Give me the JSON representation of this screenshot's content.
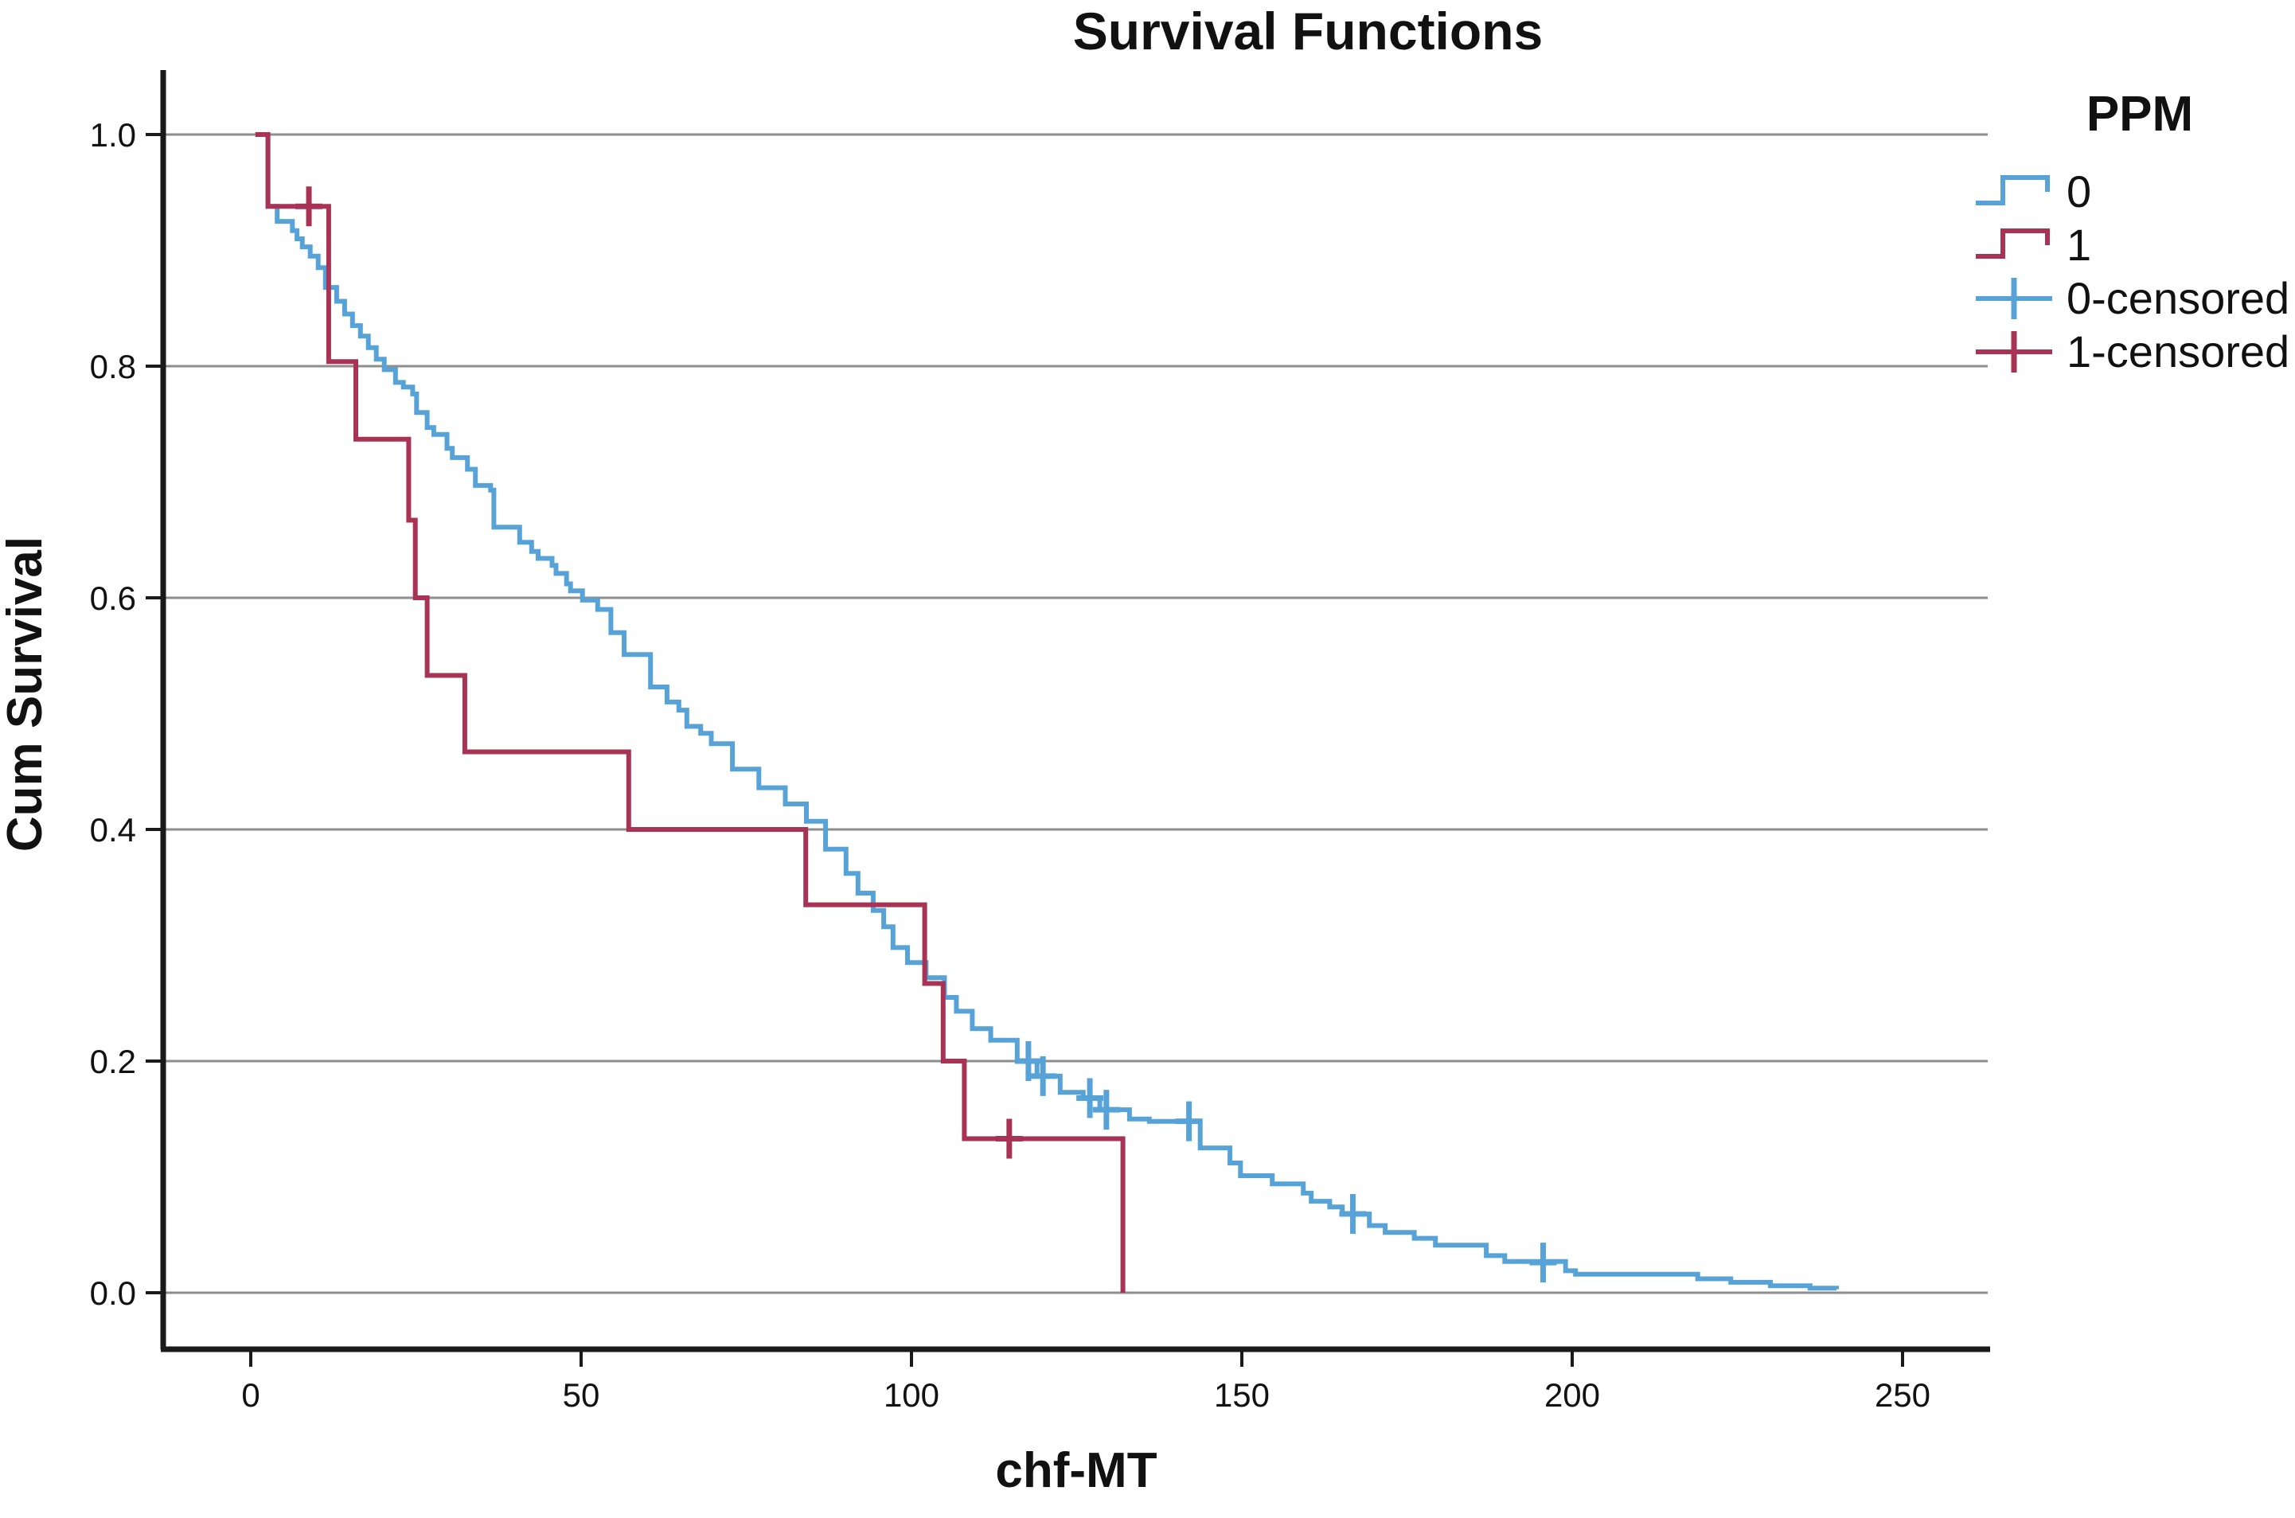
{
  "figure": {
    "title": "Survival Functions",
    "x_axis_label": "chf-MT",
    "y_axis_label": "Cum Survival"
  },
  "legend": {
    "title": "PPM",
    "items": [
      {
        "label": "0",
        "type": "step-line",
        "color": "#57a3d8"
      },
      {
        "label": "1",
        "type": "step-line",
        "color": "#a83355"
      },
      {
        "label": "0-censored",
        "type": "censor-plus",
        "color": "#57a3d8"
      },
      {
        "label": "1-censored",
        "type": "censor-plus",
        "color": "#a83355"
      }
    ]
  },
  "colors": {
    "group0": "#57a3d8",
    "group1": "#a83355",
    "gridline": "#8e8e8e",
    "axis": "#1a1a1a",
    "background": "#ffffff"
  },
  "chart_data": {
    "type": "line",
    "chart_style": "kaplan-meier-step",
    "title": "Survival Functions",
    "xlabel": "chf-MT",
    "ylabel": "Cum Survival",
    "xlim": [
      -13,
      263
    ],
    "ylim": [
      -0.05,
      1.06
    ],
    "x_ticks": [
      0,
      50,
      100,
      150,
      200,
      250
    ],
    "x_tick_labels": [
      "0",
      "50",
      "100",
      "150",
      "200",
      "250"
    ],
    "y_ticks": [
      0.0,
      0.2,
      0.4,
      0.6,
      0.8,
      1.0
    ],
    "y_tick_labels": [
      "0.0",
      "0.2",
      "0.4",
      "0.6",
      "0.8",
      "1.0"
    ],
    "grid": "horizontal",
    "legend_position": "right",
    "series": [
      {
        "name": "0",
        "color": "#57a3d8",
        "steps": [
          [
            0.7,
            1.0
          ],
          [
            2.6,
            0.938
          ],
          [
            4.0,
            0.925
          ],
          [
            6.3,
            0.917
          ],
          [
            7.0,
            0.91
          ],
          [
            7.8,
            0.903
          ],
          [
            9.0,
            0.895
          ],
          [
            10.2,
            0.885
          ],
          [
            11.3,
            0.868
          ],
          [
            13.0,
            0.856
          ],
          [
            14.2,
            0.845
          ],
          [
            15.4,
            0.835
          ],
          [
            16.6,
            0.826
          ],
          [
            17.8,
            0.816
          ],
          [
            19.0,
            0.806
          ],
          [
            20.2,
            0.797
          ],
          [
            21.9,
            0.786
          ],
          [
            23.1,
            0.782
          ],
          [
            24.5,
            0.776
          ],
          [
            25.1,
            0.76
          ],
          [
            26.7,
            0.747
          ],
          [
            27.7,
            0.741
          ],
          [
            29.7,
            0.729
          ],
          [
            30.5,
            0.721
          ],
          [
            32.8,
            0.711
          ],
          [
            34.0,
            0.697
          ],
          [
            36.3,
            0.693
          ],
          [
            36.8,
            0.661
          ],
          [
            40.7,
            0.648
          ],
          [
            42.5,
            0.64
          ],
          [
            43.5,
            0.634
          ],
          [
            45.6,
            0.628
          ],
          [
            46.2,
            0.621
          ],
          [
            47.8,
            0.612
          ],
          [
            48.4,
            0.606
          ],
          [
            50.2,
            0.598
          ],
          [
            52.5,
            0.59
          ],
          [
            54.5,
            0.57
          ],
          [
            56.5,
            0.551
          ],
          [
            60.5,
            0.523
          ],
          [
            63.0,
            0.51
          ],
          [
            64.8,
            0.503
          ],
          [
            66.0,
            0.489
          ],
          [
            68.1,
            0.483
          ],
          [
            69.7,
            0.474
          ],
          [
            72.9,
            0.452
          ],
          [
            76.9,
            0.436
          ],
          [
            80.9,
            0.422
          ],
          [
            84.1,
            0.407
          ],
          [
            87.0,
            0.383
          ],
          [
            90.1,
            0.362
          ],
          [
            91.9,
            0.345
          ],
          [
            94.2,
            0.33
          ],
          [
            95.8,
            0.316
          ],
          [
            97.2,
            0.298
          ],
          [
            99.4,
            0.285
          ],
          [
            102.2,
            0.272
          ],
          [
            105.0,
            0.255
          ],
          [
            106.8,
            0.243
          ],
          [
            109.2,
            0.228
          ],
          [
            112.0,
            0.218
          ],
          [
            116.0,
            0.2
          ],
          [
            119.0,
            0.187
          ],
          [
            122.5,
            0.173
          ],
          [
            126.0,
            0.168
          ],
          [
            128.5,
            0.158
          ],
          [
            133.0,
            0.15
          ],
          [
            136.0,
            0.148
          ],
          [
            143.7,
            0.125
          ],
          [
            148.2,
            0.112
          ],
          [
            149.8,
            0.101
          ],
          [
            154.6,
            0.094
          ],
          [
            159.3,
            0.086
          ],
          [
            160.5,
            0.079
          ],
          [
            163.3,
            0.074
          ],
          [
            165.2,
            0.068
          ],
          [
            169.3,
            0.058
          ],
          [
            171.7,
            0.052
          ],
          [
            176.1,
            0.047
          ],
          [
            179.3,
            0.041
          ],
          [
            187.0,
            0.032
          ],
          [
            189.8,
            0.027
          ],
          [
            199.0,
            0.019
          ],
          [
            200.5,
            0.016
          ],
          [
            219.0,
            0.012
          ],
          [
            224.0,
            0.009
          ],
          [
            230.0,
            0.006
          ],
          [
            236.0,
            0.004
          ],
          [
            240.0,
            0.003
          ]
        ],
        "censored": [
          [
            117.7,
            0.2
          ],
          [
            119.9,
            0.187
          ],
          [
            127.0,
            0.168
          ],
          [
            129.5,
            0.158
          ],
          [
            142.0,
            0.148
          ],
          [
            166.8,
            0.068
          ],
          [
            195.6,
            0.026
          ]
        ]
      },
      {
        "name": "1",
        "color": "#a83355",
        "steps": [
          [
            0.7,
            1.0
          ],
          [
            2.6,
            0.938
          ],
          [
            11.8,
            0.804
          ],
          [
            15.9,
            0.737
          ],
          [
            23.9,
            0.667
          ],
          [
            24.9,
            0.6
          ],
          [
            26.7,
            0.533
          ],
          [
            32.4,
            0.467
          ],
          [
            57.2,
            0.4
          ],
          [
            84.0,
            0.335
          ],
          [
            102.0,
            0.267
          ],
          [
            104.8,
            0.2
          ],
          [
            108.0,
            0.133
          ],
          [
            132.0,
            0.0
          ]
        ],
        "censored": [
          [
            8.8,
            0.938
          ],
          [
            114.8,
            0.133
          ]
        ]
      }
    ]
  }
}
